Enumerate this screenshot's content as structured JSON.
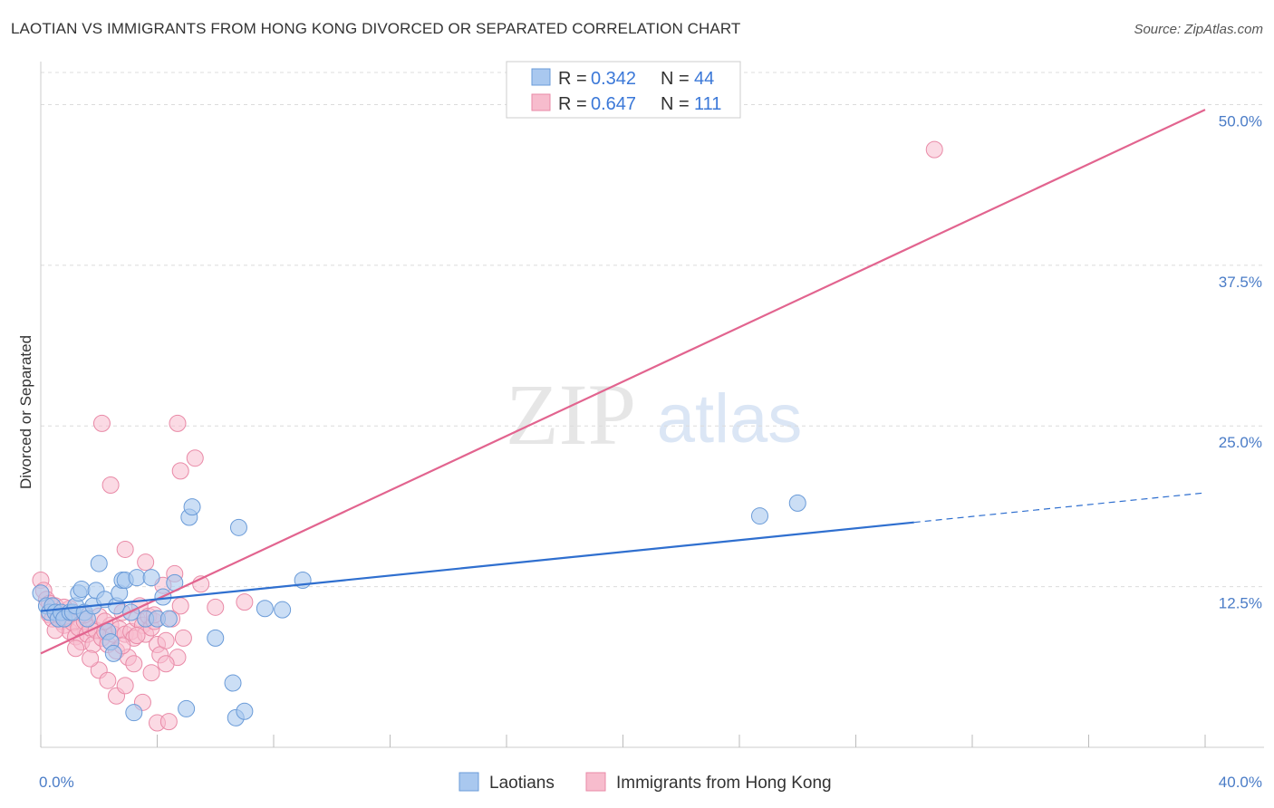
{
  "title": "LAOTIAN VS IMMIGRANTS FROM HONG KONG DIVORCED OR SEPARATED CORRELATION CHART",
  "source": "Source: ZipAtlas.com",
  "watermark": {
    "zip": "ZIP",
    "atlas": "atlas"
  },
  "chart_data": {
    "type": "scatter",
    "ylabel": "Divorced or Separated",
    "xlim": [
      0,
      40
    ],
    "ylim": [
      0,
      52.5
    ],
    "x_tick_labels": {
      "left": "0.0%",
      "right": "40.0%"
    },
    "y_ticks": [
      {
        "value": 12.5,
        "label": "12.5%"
      },
      {
        "value": 25.0,
        "label": "25.0%"
      },
      {
        "value": 37.5,
        "label": "37.5%"
      },
      {
        "value": 50.0,
        "label": "50.0%"
      }
    ],
    "colors": {
      "laotians_fill": "#a9c8ef",
      "laotians_stroke": "#6a9bd8",
      "laotians_line": "#2f6fcf",
      "hk_fill": "#f7bccd",
      "hk_stroke": "#e98aa7",
      "hk_line": "#e2648f",
      "grid": "#dcdcdc",
      "axis_text": "#4a7cc7"
    },
    "legend": {
      "rows": [
        {
          "r_label": "R = ",
          "r_value": "0.342",
          "n_label": "N = ",
          "n_value": "44"
        },
        {
          "r_label": "R = ",
          "r_value": "0.647",
          "n_label": "N = ",
          "n_value": "111"
        }
      ]
    },
    "series": [
      {
        "name": "Laotians",
        "regression": {
          "x0": 0,
          "y0": 10.6,
          "x1": 30,
          "y1": 17.5,
          "dash_to_x": 40,
          "dash_to_y": 19.8
        },
        "points": [
          [
            0.0,
            12.0
          ],
          [
            0.2,
            11.0
          ],
          [
            0.3,
            10.5
          ],
          [
            0.4,
            11.0
          ],
          [
            0.5,
            10.5
          ],
          [
            0.6,
            10.0
          ],
          [
            0.7,
            10.5
          ],
          [
            0.8,
            10.0
          ],
          [
            1.0,
            10.5
          ],
          [
            1.1,
            10.5
          ],
          [
            1.2,
            11.0
          ],
          [
            1.3,
            12.0
          ],
          [
            1.4,
            12.3
          ],
          [
            1.5,
            10.5
          ],
          [
            1.6,
            10.0
          ],
          [
            1.8,
            11.0
          ],
          [
            1.9,
            12.2
          ],
          [
            2.0,
            14.3
          ],
          [
            2.2,
            11.5
          ],
          [
            2.3,
            9.0
          ],
          [
            2.4,
            8.2
          ],
          [
            2.5,
            7.3
          ],
          [
            2.6,
            11.0
          ],
          [
            2.7,
            12.0
          ],
          [
            2.8,
            13.0
          ],
          [
            2.9,
            13.0
          ],
          [
            3.1,
            10.5
          ],
          [
            3.2,
            2.7
          ],
          [
            3.3,
            13.2
          ],
          [
            3.6,
            10.0
          ],
          [
            3.8,
            13.2
          ],
          [
            4.0,
            10.0
          ],
          [
            4.2,
            11.7
          ],
          [
            4.4,
            10.0
          ],
          [
            4.6,
            12.8
          ],
          [
            5.0,
            3.0
          ],
          [
            5.1,
            17.9
          ],
          [
            5.2,
            18.7
          ],
          [
            6.0,
            8.5
          ],
          [
            6.6,
            5.0
          ],
          [
            6.7,
            2.3
          ],
          [
            6.8,
            17.1
          ],
          [
            7.0,
            2.8
          ],
          [
            7.7,
            10.8
          ],
          [
            8.3,
            10.7
          ],
          [
            9.0,
            13.0
          ],
          [
            24.7,
            18.0
          ],
          [
            26.0,
            19.0
          ]
        ]
      },
      {
        "name": "Immigrants from Hong Kong",
        "regression": {
          "x0": 0,
          "y0": 7.3,
          "x1": 40,
          "y1": 49.6
        },
        "points": [
          [
            0.0,
            13.0
          ],
          [
            0.1,
            12.2
          ],
          [
            0.2,
            11.5
          ],
          [
            0.3,
            11.2
          ],
          [
            0.3,
            10.3
          ],
          [
            0.4,
            10.0
          ],
          [
            0.5,
            11.0
          ],
          [
            0.6,
            10.4
          ],
          [
            0.7,
            9.8
          ],
          [
            0.8,
            9.5
          ],
          [
            0.9,
            10.0
          ],
          [
            1.0,
            9.0
          ],
          [
            1.0,
            10.8
          ],
          [
            1.1,
            9.7
          ],
          [
            1.2,
            8.6
          ],
          [
            1.3,
            9.3
          ],
          [
            1.4,
            8.2
          ],
          [
            1.5,
            9.8
          ],
          [
            1.6,
            8.8
          ],
          [
            1.7,
            9.3
          ],
          [
            1.8,
            8.0
          ],
          [
            1.9,
            9.1
          ],
          [
            2.0,
            10.2
          ],
          [
            2.1,
            8.5
          ],
          [
            2.2,
            9.0
          ],
          [
            2.3,
            8.0
          ],
          [
            2.4,
            9.5
          ],
          [
            2.5,
            8.8
          ],
          [
            2.6,
            7.5
          ],
          [
            2.7,
            9.2
          ],
          [
            2.8,
            10.5
          ],
          [
            2.9,
            8.8
          ],
          [
            3.0,
            7.0
          ],
          [
            3.1,
            9.0
          ],
          [
            3.2,
            8.5
          ],
          [
            3.3,
            10.0
          ],
          [
            3.4,
            11.0
          ],
          [
            3.5,
            9.5
          ],
          [
            3.6,
            8.8
          ],
          [
            3.7,
            10.2
          ],
          [
            3.8,
            9.3
          ],
          [
            3.9,
            9.8
          ],
          [
            4.0,
            8.0
          ],
          [
            4.1,
            7.2
          ],
          [
            4.2,
            12.6
          ],
          [
            4.3,
            8.3
          ],
          [
            4.5,
            10.0
          ],
          [
            4.6,
            13.5
          ],
          [
            4.7,
            7.0
          ],
          [
            4.8,
            11.0
          ],
          [
            4.9,
            8.5
          ],
          [
            2.0,
            6.0
          ],
          [
            2.3,
            5.2
          ],
          [
            2.6,
            4.0
          ],
          [
            2.9,
            4.8
          ],
          [
            3.2,
            6.5
          ],
          [
            3.5,
            3.5
          ],
          [
            3.8,
            5.8
          ],
          [
            4.0,
            1.9
          ],
          [
            4.4,
            2.0
          ],
          [
            2.1,
            25.2
          ],
          [
            2.4,
            20.4
          ],
          [
            2.9,
            15.4
          ],
          [
            3.6,
            14.4
          ],
          [
            4.7,
            25.2
          ],
          [
            4.8,
            21.5
          ],
          [
            5.3,
            22.5
          ],
          [
            5.5,
            12.7
          ],
          [
            6.0,
            10.9
          ],
          [
            7.0,
            11.3
          ],
          [
            1.2,
            7.7
          ],
          [
            1.7,
            6.9
          ],
          [
            0.5,
            9.1
          ],
          [
            0.8,
            10.9
          ],
          [
            1.5,
            10.3
          ],
          [
            2.2,
            9.8
          ],
          [
            2.8,
            7.9
          ],
          [
            3.3,
            8.7
          ],
          [
            3.9,
            10.3
          ],
          [
            4.3,
            6.5
          ],
          [
            30.7,
            46.5
          ]
        ]
      }
    ],
    "bottom_legend": [
      {
        "label": "Laotians"
      },
      {
        "label": "Immigrants from Hong Kong"
      }
    ]
  }
}
